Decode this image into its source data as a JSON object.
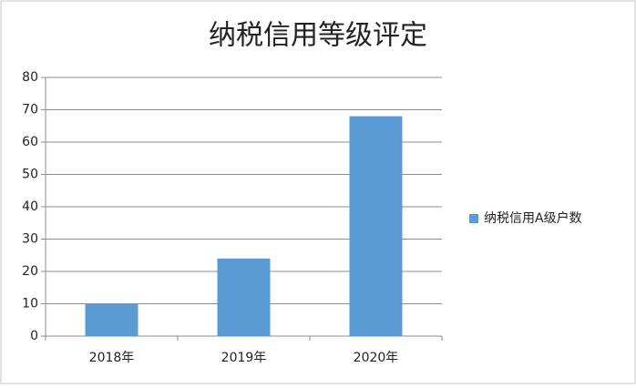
{
  "chart_data": {
    "type": "bar",
    "title": "纳税信用等级评定",
    "categories": [
      "2018年",
      "2019年",
      "2020年"
    ],
    "series": [
      {
        "name": "纳税信用A级户数",
        "color": "#5b9bd5",
        "values": [
          10,
          24,
          68
        ]
      }
    ],
    "ylim": [
      0,
      80
    ],
    "yticks": [
      0,
      10,
      20,
      30,
      40,
      50,
      60,
      70,
      80
    ],
    "grid": true,
    "legend": "right"
  }
}
